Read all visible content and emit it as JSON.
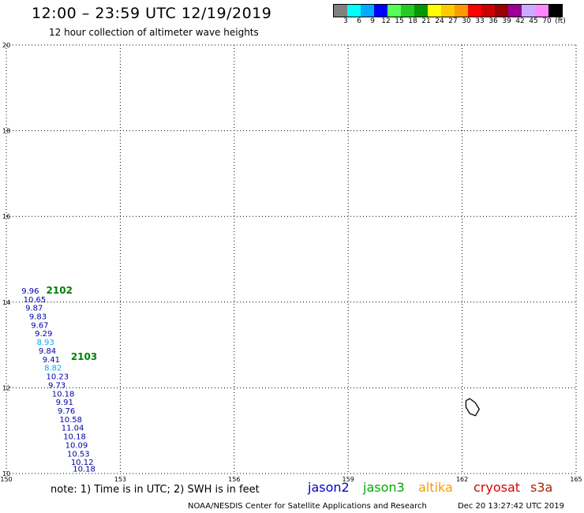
{
  "header": {
    "title": "12:00 – 23:59 UTC 12/19/2019",
    "subtitle": "12 hour collection of altimeter wave heights"
  },
  "legend": {
    "colors": [
      "#808080",
      "#00ffff",
      "#00aaff",
      "#0000ff",
      "#55ff55",
      "#22cc22",
      "#009900",
      "#ffff00",
      "#ffcc00",
      "#ff9900",
      "#ff0000",
      "#cc0000",
      "#990000",
      "#990099",
      "#ccaaff",
      "#ff88ff",
      "#000000"
    ],
    "labels": [
      "3",
      "6",
      "9",
      "12",
      "15",
      "18",
      "21",
      "24",
      "27",
      "30",
      "33",
      "36",
      "39",
      "42",
      "45",
      "70",
      "(ft)"
    ]
  },
  "map": {
    "lon_range": [
      150,
      165
    ],
    "lat_range": [
      10,
      20
    ],
    "lon_ticks": [
      "150",
      "153",
      "156",
      "159",
      "162",
      "165"
    ],
    "lat_ticks": [
      "10",
      "12",
      "14",
      "16",
      "18",
      "20"
    ],
    "grid": "dotted",
    "track_labels": [
      {
        "text": "2102",
        "color": "#008000",
        "lon": 151.05,
        "lat": 14.2
      },
      {
        "text": "2103",
        "color": "#008000",
        "lon": 151.7,
        "lat": 12.65
      }
    ],
    "wave_heights": [
      {
        "text": "9.96",
        "color": "#0000aa",
        "lon": 150.4,
        "lat": 14.2
      },
      {
        "text": "10.65",
        "color": "#0000aa",
        "lon": 150.45,
        "lat": 14.0
      },
      {
        "text": "9.87",
        "color": "#0000aa",
        "lon": 150.5,
        "lat": 13.8
      },
      {
        "text": "9.83",
        "color": "#0000aa",
        "lon": 150.6,
        "lat": 13.6
      },
      {
        "text": "9.67",
        "color": "#0000aa",
        "lon": 150.65,
        "lat": 13.4
      },
      {
        "text": "9.29",
        "color": "#0000aa",
        "lon": 150.75,
        "lat": 13.2
      },
      {
        "text": "8.93",
        "color": "#00aaff",
        "lon": 150.8,
        "lat": 13.0
      },
      {
        "text": "9.84",
        "color": "#0000aa",
        "lon": 150.85,
        "lat": 12.8
      },
      {
        "text": "9.41",
        "color": "#0000aa",
        "lon": 150.95,
        "lat": 12.6
      },
      {
        "text": "8.82",
        "color": "#00aaff",
        "lon": 151.0,
        "lat": 12.4
      },
      {
        "text": "10.23",
        "color": "#0000aa",
        "lon": 151.05,
        "lat": 12.2
      },
      {
        "text": "9.73",
        "color": "#0000aa",
        "lon": 151.1,
        "lat": 12.0
      },
      {
        "text": "10.18",
        "color": "#0000aa",
        "lon": 151.2,
        "lat": 11.8
      },
      {
        "text": "9.91",
        "color": "#0000aa",
        "lon": 151.3,
        "lat": 11.6
      },
      {
        "text": "9.76",
        "color": "#0000aa",
        "lon": 151.35,
        "lat": 11.4
      },
      {
        "text": "10.58",
        "color": "#0000aa",
        "lon": 151.4,
        "lat": 11.2
      },
      {
        "text": "11.04",
        "color": "#0000aa",
        "lon": 151.45,
        "lat": 11.0
      },
      {
        "text": "10.18",
        "color": "#0000aa",
        "lon": 151.5,
        "lat": 10.8
      },
      {
        "text": "10.09",
        "color": "#0000aa",
        "lon": 151.55,
        "lat": 10.6
      },
      {
        "text": "10.53",
        "color": "#0000aa",
        "lon": 151.6,
        "lat": 10.4
      },
      {
        "text": "10.12",
        "color": "#0000aa",
        "lon": 151.7,
        "lat": 10.2
      },
      {
        "text": "10.18",
        "color": "#0000aa",
        "lon": 151.75,
        "lat": 10.05
      }
    ],
    "island_outline": [
      [
        162.1,
        11.7
      ],
      [
        162.2,
        11.75
      ],
      [
        162.35,
        11.65
      ],
      [
        162.45,
        11.5
      ],
      [
        162.35,
        11.35
      ],
      [
        162.2,
        11.4
      ],
      [
        162.1,
        11.55
      ],
      [
        162.1,
        11.7
      ]
    ]
  },
  "footer": {
    "note": "note:  1) Time is in UTC;  2) SWH is in feet",
    "satellites": [
      {
        "name": "jason2",
        "color": "#0000cc"
      },
      {
        "name": "jason3",
        "color": "#00aa00"
      },
      {
        "name": "altika",
        "color": "#ff9900"
      },
      {
        "name": "cryosat",
        "color": "#dd0000"
      },
      {
        "name": "s3a",
        "color": "#aa2200"
      }
    ],
    "credit": "NOAA/NESDIS Center for Satellite Applications and Research",
    "timestamp": "Dec 20 13:27:42 UTC 2019"
  }
}
